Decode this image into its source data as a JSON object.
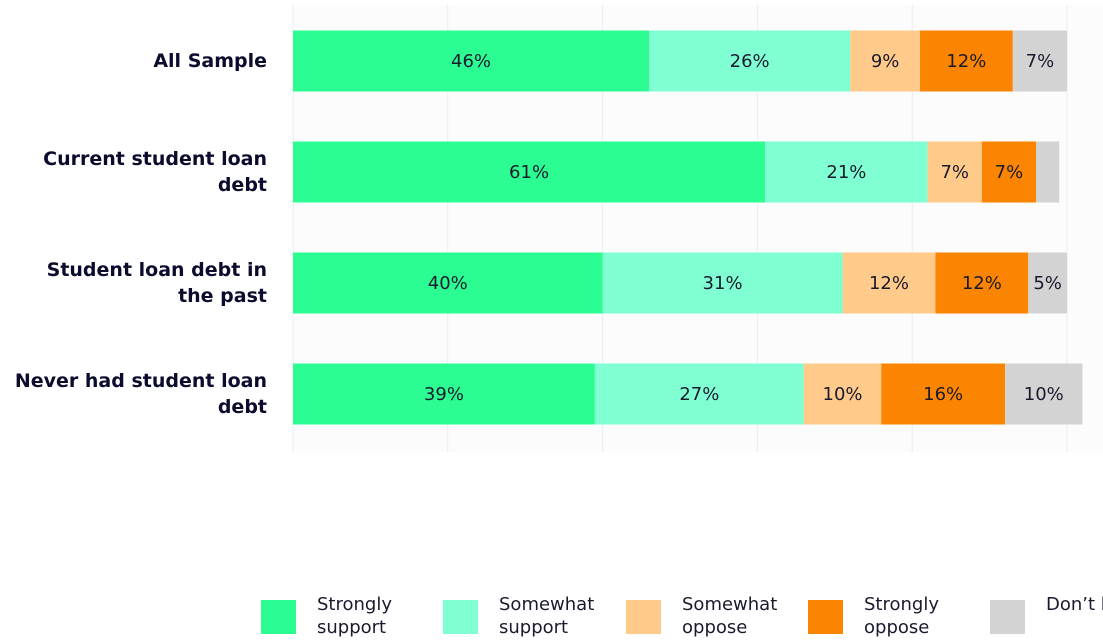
{
  "chart_data": {
    "type": "stacked-bar",
    "categories": [
      "All Sample",
      "Current student loan debt",
      "Student loan debt in the past",
      "Never had student loan debt"
    ],
    "series": [
      {
        "name": "Strongly support",
        "color": "#2bfd93",
        "values": [
          46,
          61,
          40,
          39
        ],
        "value_labels": [
          "46%",
          "61%",
          "40%",
          "39%"
        ]
      },
      {
        "name": "Somewhat support",
        "color": "#80ffd2",
        "values": [
          26,
          21,
          31,
          27
        ],
        "value_labels": [
          "26%",
          "21%",
          "31%",
          "27%"
        ]
      },
      {
        "name": "Somewhat oppose",
        "color": "#ffca8a",
        "values": [
          9,
          7,
          12,
          10
        ],
        "value_labels": [
          "9%",
          "7%",
          "12%",
          "10%"
        ]
      },
      {
        "name": "Strongly oppose",
        "color": "#fb8500",
        "values": [
          12,
          7,
          12,
          16
        ],
        "value_labels": [
          "12%",
          "7%",
          "12%",
          "16%"
        ]
      },
      {
        "name": "Don’t know",
        "color": "#d3d3d3",
        "values": [
          7,
          3,
          5,
          10
        ],
        "value_labels": [
          "7%",
          null,
          "5%",
          "10%"
        ]
      }
    ],
    "xlim": [
      0,
      100
    ],
    "xticks": [
      0,
      20,
      40,
      60,
      80,
      100
    ],
    "grid": true
  }
}
